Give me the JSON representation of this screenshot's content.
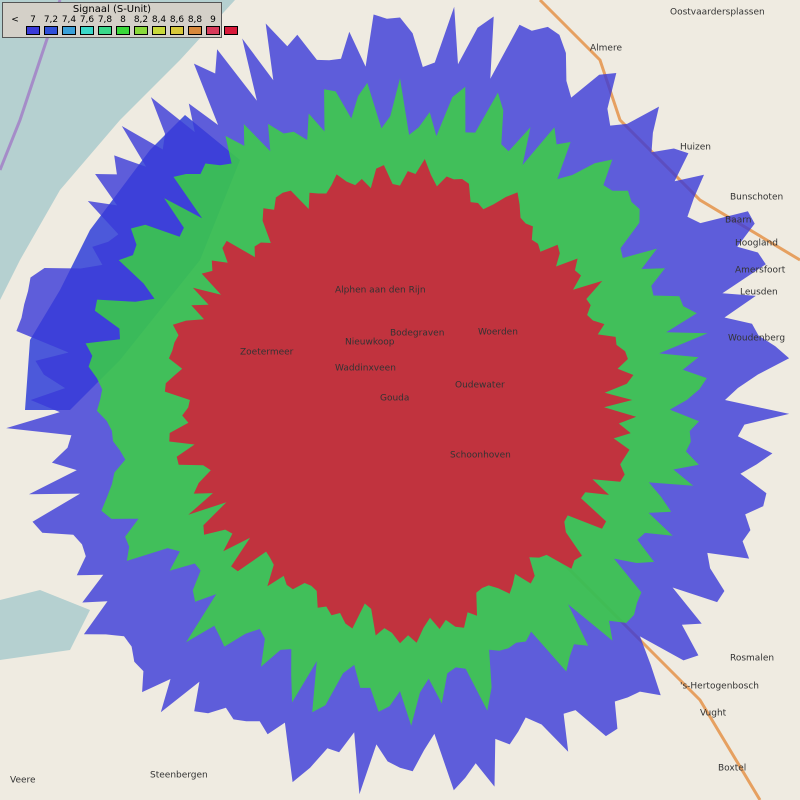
{
  "legend": {
    "title": "Signaal (S-Unit)",
    "labels": [
      "<",
      "7",
      "7,2",
      "7,4",
      "7,6",
      "7,8",
      "8",
      "8,2",
      "8,4",
      "8,6",
      "8,8",
      "9"
    ],
    "colors": [
      "#3a3ad8",
      "#2f4fd8",
      "#3aa0d8",
      "#3ad8c8",
      "#3ad88a",
      "#3ad83a",
      "#8ad83a",
      "#c8d83a",
      "#d8c83a",
      "#d8883a",
      "#d83a5a",
      "#d81a3a"
    ]
  },
  "places": [
    "Oostvaardersplassen",
    "Almere",
    "Huizen",
    "Bunschoten",
    "Baarn",
    "Hoogland",
    "Amersfoort",
    "Leusden",
    "Woudenberg",
    "Zoetermeer",
    "Alphen aan den Rijn",
    "Nieuwkoop",
    "Bodegraven",
    "Woerden",
    "Waddinxveen",
    "Gouda",
    "Oudewater",
    "Schoonhoven",
    "Rosmalen",
    "'s-Hertogenbosch",
    "Vught",
    "Boxtel",
    "Steenbergen",
    "Veere"
  ]
}
